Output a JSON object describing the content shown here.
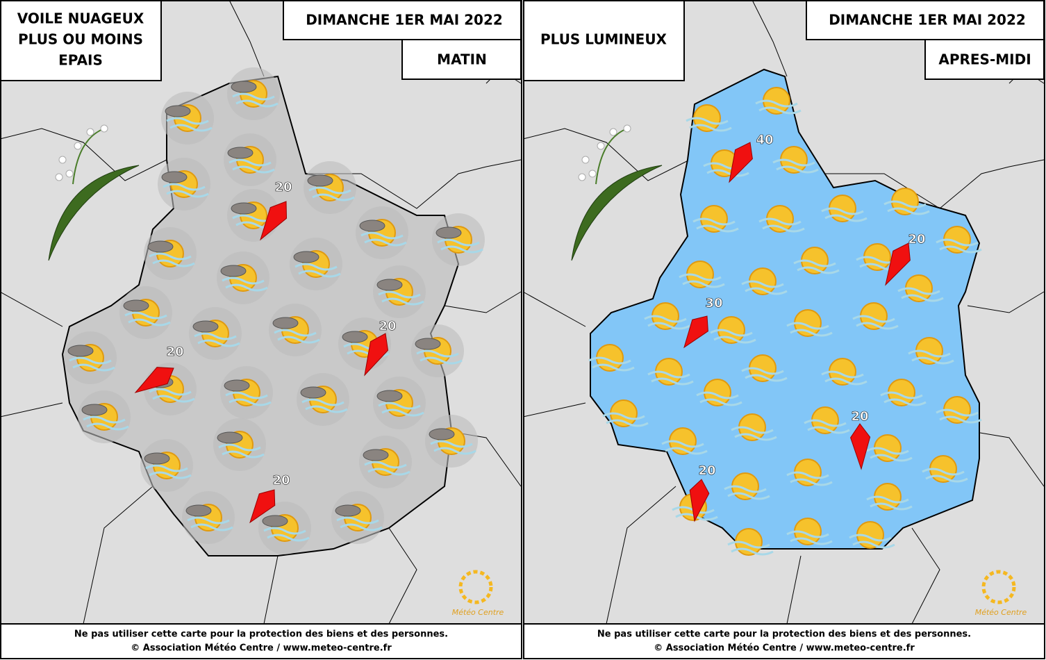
{
  "panels": [
    {
      "description": [
        "VOILE NUAGEUX",
        "PLUS OU MOINS",
        "EPAIS"
      ],
      "date": "DIMANCHE 1ER MAI 2022",
      "period": "MATIN",
      "winds": [
        20,
        20,
        20,
        20
      ],
      "logo": "Météo Centre",
      "footer": [
        "Ne pas utiliser cette carte pour la protection des biens et des personnes.",
        "© Association Météo Centre / www.meteo-centre.fr"
      ]
    },
    {
      "description": [
        "PLUS LUMINEUX"
      ],
      "date": "DIMANCHE 1ER MAI 2022",
      "period": "APRES-MIDI",
      "winds": [
        40,
        20,
        30,
        20,
        20
      ],
      "logo": "Météo Centre",
      "footer": [
        "Ne pas utiliser cette carte pour la protection des biens et des personnes.",
        "© Association Météo Centre / www.meteo-centre.fr"
      ]
    }
  ]
}
